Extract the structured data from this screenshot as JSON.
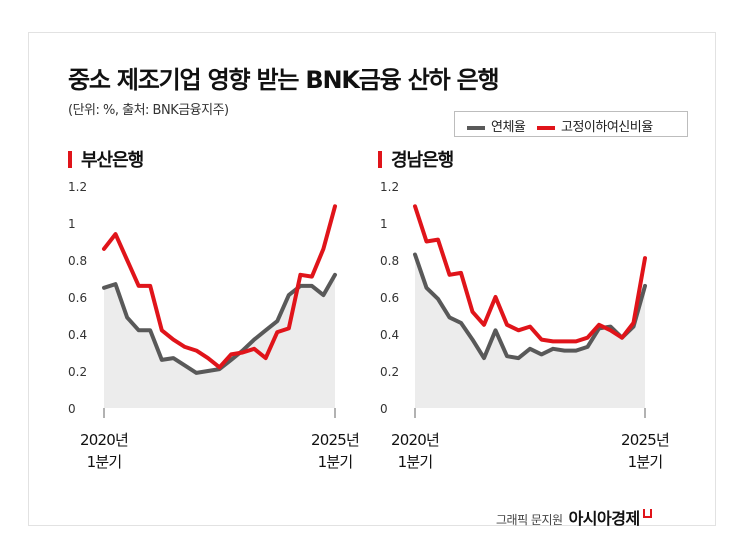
{
  "header": {
    "title": "중소 제조기업 영향 받는 BNK금융 산하 은행",
    "subtitle": "(단위: %, 출처: BNK금융지주)"
  },
  "legend": {
    "items": [
      {
        "label": "연체율",
        "color": "#595959"
      },
      {
        "label": "고정이하여신비율",
        "color": "#e0141a"
      }
    ]
  },
  "credit": {
    "graphic": "그래픽 문지원",
    "brand": "아시아경제"
  },
  "chart_data": [
    {
      "type": "line",
      "title": "부산은행",
      "ylim": [
        0,
        1.2
      ],
      "yticks": [
        "1.2",
        "1",
        "0.8",
        "0.6",
        "0.4",
        "0.2",
        "0"
      ],
      "x_tick_labels": [
        {
          "index": 0,
          "line1": "2020년",
          "line2": "1분기"
        },
        {
          "index": 20,
          "line1": "2025년",
          "line2": "1분기"
        }
      ],
      "shaded_series": "연체율",
      "series": [
        {
          "name": "연체율",
          "color": "#595959",
          "values": [
            0.65,
            0.67,
            0.49,
            0.42,
            0.42,
            0.26,
            0.27,
            0.23,
            0.19,
            0.2,
            0.21,
            0.26,
            0.31,
            0.37,
            0.42,
            0.47,
            0.61,
            0.66,
            0.66,
            0.61,
            0.72
          ]
        },
        {
          "name": "고정이하여신비율",
          "color": "#e0141a",
          "values": [
            0.86,
            0.94,
            0.8,
            0.66,
            0.66,
            0.42,
            0.37,
            0.33,
            0.31,
            0.27,
            0.22,
            0.29,
            0.3,
            0.32,
            0.27,
            0.41,
            0.43,
            0.72,
            0.71,
            0.86,
            1.09
          ]
        }
      ]
    },
    {
      "type": "line",
      "title": "경남은행",
      "ylim": [
        0,
        1.2
      ],
      "yticks": [
        "1.2",
        "1",
        "0.8",
        "0.6",
        "0.4",
        "0.2",
        "0"
      ],
      "x_tick_labels": [
        {
          "index": 0,
          "line1": "2020년",
          "line2": "1분기"
        },
        {
          "index": 20,
          "line1": "2025년",
          "line2": "1분기"
        }
      ],
      "shaded_series": "연체율",
      "series": [
        {
          "name": "연체율",
          "color": "#595959",
          "values": [
            0.83,
            0.65,
            0.59,
            0.49,
            0.46,
            0.37,
            0.27,
            0.42,
            0.28,
            0.27,
            0.32,
            0.29,
            0.32,
            0.31,
            0.31,
            0.33,
            0.43,
            0.44,
            0.38,
            0.44,
            0.66
          ]
        },
        {
          "name": "고정이하여신비율",
          "color": "#e0141a",
          "values": [
            1.09,
            0.9,
            0.91,
            0.72,
            0.73,
            0.52,
            0.45,
            0.6,
            0.45,
            0.42,
            0.44,
            0.37,
            0.36,
            0.36,
            0.36,
            0.38,
            0.45,
            0.42,
            0.38,
            0.46,
            0.81
          ]
        }
      ]
    }
  ]
}
